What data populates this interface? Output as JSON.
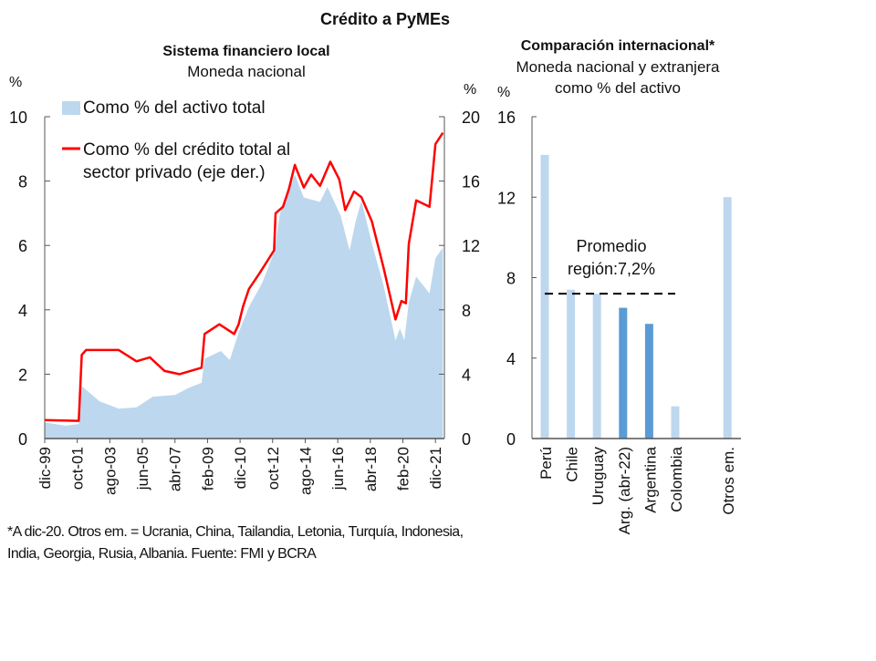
{
  "title": "Crédito a PyMEs",
  "footnote": [
    "*A dic-20. Otros em. = Ucrania, China, Tailandia, Letonia, Turquía, Indonesia,",
    "India, Georgia, Rusia, Albania. Fuente: FMI y BCRA"
  ],
  "colors": {
    "area": "#bdd7ee",
    "line": "#ff0000",
    "bar_light": "#bdd7ee",
    "bar_dark": "#5b9bd5",
    "average": "#000000"
  },
  "chart_data": [
    {
      "type": "area+line",
      "title": "Sistema financiero local",
      "subtitle": "Moneda nacional",
      "ylabel_left": "%",
      "ylabel_right": "%",
      "ylim_left": [
        0,
        10
      ],
      "ylim_right": [
        0,
        20
      ],
      "yticks_left": [
        "0",
        "2",
        "4",
        "6",
        "8",
        "10"
      ],
      "yticks_right": [
        "0",
        "4",
        "8",
        "12",
        "16",
        "20"
      ],
      "xlim": [
        "1999-12",
        "2022-05"
      ],
      "xticks": [
        "dic-99",
        "oct-01",
        "ago-03",
        "jun-05",
        "abr-07",
        "feb-09",
        "dic-10",
        "oct-12",
        "ago-14",
        "jun-16",
        "abr-18",
        "feb-20",
        "dic-21"
      ],
      "legend_placement": "top-left",
      "series": [
        {
          "name": "Como % del activo total",
          "type": "area",
          "axis": "left",
          "points": [
            [
              "1999-12",
              0.5
            ],
            [
              "2001-02",
              0.4
            ],
            [
              "2001-11",
              0.45
            ],
            [
              "2002-01",
              1.63
            ],
            [
              "2003-01",
              1.16
            ],
            [
              "2004-02",
              0.93
            ],
            [
              "2005-02",
              0.97
            ],
            [
              "2006-01",
              1.3
            ],
            [
              "2007-04",
              1.35
            ],
            [
              "2008-02",
              1.59
            ],
            [
              "2008-10",
              1.73
            ],
            [
              "2008-12",
              2.48
            ],
            [
              "2009-11",
              2.72
            ],
            [
              "2010-05",
              2.44
            ],
            [
              "2010-11",
              3.29
            ],
            [
              "2011-06",
              4.09
            ],
            [
              "2012-03",
              4.84
            ],
            [
              "2012-11",
              5.79
            ],
            [
              "2013-03",
              7.0
            ],
            [
              "2014-01",
              8.2
            ],
            [
              "2014-07",
              7.49
            ],
            [
              "2015-06",
              7.35
            ],
            [
              "2015-11",
              7.82
            ],
            [
              "2016-08",
              6.92
            ],
            [
              "2017-02",
              5.84
            ],
            [
              "2017-06",
              6.73
            ],
            [
              "2017-10",
              7.39
            ],
            [
              "2018-05",
              6.07
            ],
            [
              "2019-01",
              4.75
            ],
            [
              "2019-09",
              3.05
            ],
            [
              "2019-12",
              3.42
            ],
            [
              "2020-03",
              3.05
            ],
            [
              "2020-06",
              4.23
            ],
            [
              "2020-11",
              5.03
            ],
            [
              "2021-08",
              4.51
            ],
            [
              "2021-12",
              5.6
            ],
            [
              "2022-05",
              5.93
            ]
          ]
        },
        {
          "name": "Como % del crédito total al sector privado (eje der.)",
          "name_lines": [
            "Como % del crédito total al",
            "sector privado (eje der.)"
          ],
          "type": "line",
          "axis": "right",
          "points": [
            [
              "1999-12",
              1.15
            ],
            [
              "2001-11",
              1.1
            ],
            [
              "2002-01",
              5.2
            ],
            [
              "2002-04",
              5.5
            ],
            [
              "2004-02",
              5.5
            ],
            [
              "2005-02",
              4.8
            ],
            [
              "2005-11",
              5.05
            ],
            [
              "2006-09",
              4.2
            ],
            [
              "2007-07",
              4.0
            ],
            [
              "2008-10",
              4.4
            ],
            [
              "2008-12",
              6.5
            ],
            [
              "2009-10",
              7.1
            ],
            [
              "2010-08",
              6.5
            ],
            [
              "2010-11",
              7.1
            ],
            [
              "2011-02",
              8.2
            ],
            [
              "2011-06",
              9.3
            ],
            [
              "2012-01",
              10.25
            ],
            [
              "2012-11",
              11.7
            ],
            [
              "2012-12",
              14.0
            ],
            [
              "2013-05",
              14.4
            ],
            [
              "2013-09",
              15.5
            ],
            [
              "2014-01",
              17.0
            ],
            [
              "2014-07",
              15.6
            ],
            [
              "2014-12",
              16.4
            ],
            [
              "2015-06",
              15.7
            ],
            [
              "2016-01",
              17.2
            ],
            [
              "2016-07",
              16.1
            ],
            [
              "2016-11",
              14.2
            ],
            [
              "2017-05",
              15.35
            ],
            [
              "2017-10",
              15.0
            ],
            [
              "2018-05",
              13.5
            ],
            [
              "2019-01",
              10.6
            ],
            [
              "2019-09",
              7.4
            ],
            [
              "2020-01",
              8.55
            ],
            [
              "2020-04",
              8.4
            ],
            [
              "2020-06",
              12.1
            ],
            [
              "2020-11",
              14.8
            ],
            [
              "2021-08",
              14.4
            ],
            [
              "2021-12",
              18.3
            ],
            [
              "2022-05",
              19.0
            ]
          ]
        }
      ]
    },
    {
      "type": "bar",
      "title": "Comparación internacional*",
      "subtitle": [
        "Moneda nacional y extranjera",
        "como % del activo"
      ],
      "ylabel": "%",
      "ylim": [
        0,
        16
      ],
      "yticks": [
        "0",
        "4",
        "8",
        "12",
        "16"
      ],
      "categories": [
        "Perú",
        "Chile",
        "Uruguay",
        "Arg. (abr-22)",
        "Argentina",
        "Colombia",
        "",
        "Otros em."
      ],
      "values": [
        14.1,
        7.4,
        7.2,
        6.5,
        5.7,
        1.6,
        null,
        12.0
      ],
      "highlight": [
        false,
        false,
        false,
        true,
        true,
        false,
        false,
        false
      ],
      "average": {
        "value": 7.2,
        "label_lines": [
          "Promedio",
          "región:7,2%"
        ]
      }
    }
  ]
}
